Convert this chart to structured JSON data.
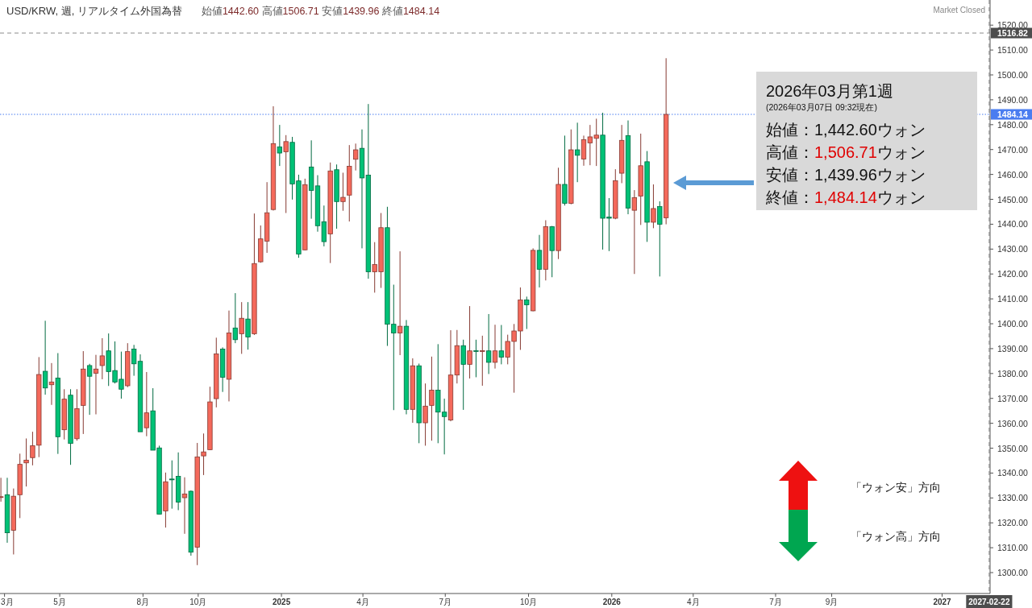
{
  "chart_data": {
    "type": "candlestick",
    "title": "USD/KRW, 週, リアルタイム外国為替",
    "subtitle": "始値1442.60 高値1506.71 安値1439.96 終値1484.14",
    "annotations": [
      "Market Closed",
      "2026年03月第1週",
      "(2026年03月07日 09:32現在)",
      "始値：1,442.60ウォン",
      "高値：1,506.71ウォン",
      "安値：1,439.96ウォン",
      "終値：1,484.14ウォン",
      "「ウォン安」方向",
      "「ウォン高」方向"
    ],
    "x": [
      "2024-02-26",
      "2024-03-04",
      "2024-03-11",
      "2024-03-18",
      "2024-03-25",
      "2024-04-01",
      "2024-04-08",
      "2024-04-15",
      "2024-04-22",
      "2024-04-29",
      "2024-05-06",
      "2024-05-13",
      "2024-05-20",
      "2024-05-27",
      "2024-06-03",
      "2024-06-10",
      "2024-06-17",
      "2024-06-24",
      "2024-07-01",
      "2024-07-08",
      "2024-07-15",
      "2024-07-22",
      "2024-07-29",
      "2024-08-05",
      "2024-08-12",
      "2024-08-19",
      "2024-08-26",
      "2024-09-02",
      "2024-09-09",
      "2024-09-16",
      "2024-09-23",
      "2024-09-30",
      "2024-10-07",
      "2024-10-14",
      "2024-10-21",
      "2024-10-28",
      "2024-11-04",
      "2024-11-11",
      "2024-11-18",
      "2024-11-25",
      "2024-12-02",
      "2024-12-09",
      "2024-12-16",
      "2024-12-23",
      "2024-12-30",
      "2025-01-06",
      "2025-01-13",
      "2025-01-20",
      "2025-01-27",
      "2025-02-03",
      "2025-02-10",
      "2025-02-17",
      "2025-02-24",
      "2025-03-03",
      "2025-03-10",
      "2025-03-17",
      "2025-03-24",
      "2025-03-31",
      "2025-04-07",
      "2025-04-14",
      "2025-04-21",
      "2025-04-28",
      "2025-05-05",
      "2025-05-12",
      "2025-05-19",
      "2025-05-26",
      "2025-06-02",
      "2025-06-09",
      "2025-06-16",
      "2025-06-23",
      "2025-06-30",
      "2025-07-07",
      "2025-07-14",
      "2025-07-21",
      "2025-07-28",
      "2025-08-04",
      "2025-08-11",
      "2025-08-18",
      "2025-08-25",
      "2025-09-01",
      "2025-09-08",
      "2025-09-15",
      "2025-09-22",
      "2025-09-29",
      "2025-10-06",
      "2025-10-13",
      "2025-10-20",
      "2025-10-27",
      "2025-11-03",
      "2025-11-10",
      "2025-11-17",
      "2025-11-24",
      "2025-12-01",
      "2025-12-08",
      "2025-12-15",
      "2025-12-22",
      "2025-12-29",
      "2026-01-05",
      "2026-01-12",
      "2026-01-19",
      "2026-01-26",
      "2026-02-02",
      "2026-02-09",
      "2026-02-16",
      "2026-02-23",
      "2026-03-02"
    ],
    "ohlc": [
      [
        1330.2,
        1338.1,
        1328.5,
        1330.5
      ],
      [
        1331.3,
        1338.1,
        1312.0,
        1316.0
      ],
      [
        1317.0,
        1333.8,
        1307.3,
        1330.7
      ],
      [
        1331.3,
        1347.8,
        1321.9,
        1343.5
      ],
      [
        1344.1,
        1353.9,
        1334.6,
        1345.2
      ],
      [
        1346.2,
        1356.6,
        1343.1,
        1351.0
      ],
      [
        1351.2,
        1386.6,
        1346.4,
        1379.6
      ],
      [
        1380.9,
        1401.2,
        1371.5,
        1374.2
      ],
      [
        1375.5,
        1384.2,
        1367.4,
        1376.6
      ],
      [
        1378.2,
        1388.2,
        1347.7,
        1354.6
      ],
      [
        1357.4,
        1373.7,
        1353.5,
        1369.7
      ],
      [
        1371.3,
        1373.7,
        1343.3,
        1351.9
      ],
      [
        1353.8,
        1373.7,
        1353.0,
        1365.9
      ],
      [
        1367.2,
        1389.0,
        1355.7,
        1381.8
      ],
      [
        1383.2,
        1383.9,
        1363.4,
        1378.9
      ],
      [
        1380.1,
        1387.5,
        1363.6,
        1381.8
      ],
      [
        1383.2,
        1394.2,
        1377.7,
        1387.1
      ],
      [
        1389.1,
        1396.1,
        1375.0,
        1380.8
      ],
      [
        1381.2,
        1392.9,
        1376.0,
        1376.6
      ],
      [
        1377.7,
        1388.8,
        1369.9,
        1373.7
      ],
      [
        1375.1,
        1392.2,
        1374.5,
        1388.8
      ],
      [
        1389.8,
        1391.5,
        1379.1,
        1383.9
      ],
      [
        1384.9,
        1387.7,
        1356.6,
        1356.6
      ],
      [
        1358.2,
        1380.6,
        1354.8,
        1364.2
      ],
      [
        1365.0,
        1374.1,
        1349.2,
        1349.2
      ],
      [
        1350.1,
        1351.0,
        1323.5,
        1323.5
      ],
      [
        1324.8,
        1340.2,
        1318.1,
        1336.5
      ],
      [
        1337.6,
        1345.1,
        1325.7,
        1337.5
      ],
      [
        1338.7,
        1348.3,
        1325.1,
        1328.3
      ],
      [
        1330.1,
        1338.3,
        1315.6,
        1331.6
      ],
      [
        1332.7,
        1333.0,
        1306.8,
        1308.2
      ],
      [
        1310.2,
        1352.1,
        1303.0,
        1346.5
      ],
      [
        1346.9,
        1355.9,
        1339.2,
        1348.5
      ],
      [
        1349.4,
        1374.7,
        1349.2,
        1368.6
      ],
      [
        1369.9,
        1394.4,
        1366.4,
        1387.9
      ],
      [
        1389.8,
        1390.5,
        1372.6,
        1378.5
      ],
      [
        1377.7,
        1405.3,
        1368.8,
        1396.3
      ],
      [
        1398.3,
        1412.3,
        1392.2,
        1393.6
      ],
      [
        1396.0,
        1408.7,
        1387.9,
        1402.2
      ],
      [
        1401.9,
        1408.7,
        1389.6,
        1394.7
      ],
      [
        1396.0,
        1444.3,
        1395.5,
        1424.2
      ],
      [
        1424.9,
        1439.5,
        1424.5,
        1434.1
      ],
      [
        1433.2,
        1456.9,
        1428.5,
        1444.6
      ],
      [
        1445.9,
        1487.4,
        1445.5,
        1472.4
      ],
      [
        1471.1,
        1479.9,
        1463.4,
        1468.6
      ],
      [
        1469.1,
        1475.8,
        1444.5,
        1473.2
      ],
      [
        1472.9,
        1475.1,
        1449.9,
        1456.2
      ],
      [
        1457.4,
        1459.9,
        1426.5,
        1428.0
      ],
      [
        1429.7,
        1458.3,
        1429.5,
        1455.9
      ],
      [
        1463.0,
        1473.7,
        1442.2,
        1453.6
      ],
      [
        1455.4,
        1459.7,
        1437.0,
        1439.4
      ],
      [
        1441.0,
        1447.5,
        1431.1,
        1433.0
      ],
      [
        1436.1,
        1464.8,
        1424.4,
        1461.4
      ],
      [
        1461.9,
        1464.0,
        1438.2,
        1449.1
      ],
      [
        1449.1,
        1460.7,
        1445.4,
        1450.8
      ],
      [
        1451.7,
        1471.8,
        1441.1,
        1463.3
      ],
      [
        1466.1,
        1472.4,
        1461.6,
        1469.9
      ],
      [
        1470.5,
        1478.1,
        1430.3,
        1458.6
      ],
      [
        1459.7,
        1488.3,
        1418.1,
        1420.9
      ],
      [
        1420.9,
        1432.8,
        1412.5,
        1423.8
      ],
      [
        1420.9,
        1444.5,
        1414.4,
        1438.6
      ],
      [
        1438.6,
        1447.0,
        1391.1,
        1399.8
      ],
      [
        1399.8,
        1415.7,
        1365.3,
        1396.3
      ],
      [
        1396.3,
        1429.1,
        1387.4,
        1399.0
      ],
      [
        1399.0,
        1401.5,
        1363.6,
        1365.6
      ],
      [
        1365.6,
        1386.1,
        1360.2,
        1383.1
      ],
      [
        1383.1,
        1384.0,
        1352.0,
        1360.2
      ],
      [
        1360.2,
        1376.0,
        1351.0,
        1366.9
      ],
      [
        1367.2,
        1386.8,
        1353.0,
        1373.3
      ],
      [
        1373.3,
        1391.8,
        1352.0,
        1364.5
      ],
      [
        1364.5,
        1369.9,
        1347.5,
        1362.7
      ],
      [
        1361.3,
        1397.4,
        1360.8,
        1379.4
      ],
      [
        1379.4,
        1397.5,
        1376.0,
        1391.2
      ],
      [
        1391.2,
        1393.6,
        1365.4,
        1383.7
      ],
      [
        1383.7,
        1407.1,
        1378.0,
        1389.1
      ],
      [
        1389.2,
        1393.6,
        1378.5,
        1389.1
      ],
      [
        1389.1,
        1395.2,
        1375.1,
        1389.2
      ],
      [
        1389.1,
        1403.9,
        1379.8,
        1384.5
      ],
      [
        1384.5,
        1399.6,
        1382.0,
        1389.1
      ],
      [
        1389.1,
        1399.5,
        1383.7,
        1386.6
      ],
      [
        1386.6,
        1395.6,
        1383.7,
        1392.9
      ],
      [
        1392.9,
        1399.9,
        1372.3,
        1397.1
      ],
      [
        1397.1,
        1414.6,
        1389.5,
        1409.6
      ],
      [
        1409.6,
        1410.9,
        1397.9,
        1407.6
      ],
      [
        1405.2,
        1430.3,
        1405.0,
        1429.5
      ],
      [
        1429.5,
        1435.7,
        1414.6,
        1421.9
      ],
      [
        1421.9,
        1441.6,
        1417.4,
        1439.0
      ],
      [
        1439.0,
        1439.3,
        1418.7,
        1429.4
      ],
      [
        1429.4,
        1462.7,
        1426.0,
        1456.0
      ],
      [
        1456.0,
        1475.6,
        1447.5,
        1448.4
      ],
      [
        1448.4,
        1478.1,
        1448.0,
        1469.9
      ],
      [
        1469.9,
        1480.8,
        1456.9,
        1467.7
      ],
      [
        1466.2,
        1475.6,
        1463.5,
        1474.0
      ],
      [
        1472.7,
        1479.9,
        1463.7,
        1475.1
      ],
      [
        1474.5,
        1482.4,
        1463.4,
        1475.8
      ],
      [
        1475.8,
        1484.8,
        1429.8,
        1442.4
      ],
      [
        1442.9,
        1450.5,
        1429.2,
        1442.4
      ],
      [
        1442.4,
        1462.1,
        1442.0,
        1457.5
      ],
      [
        1460.5,
        1479.9,
        1456.5,
        1473.7
      ],
      [
        1475.6,
        1481.7,
        1444.0,
        1446.5
      ],
      [
        1445.6,
        1453.7,
        1420.0,
        1450.7
      ],
      [
        1451.3,
        1476.4,
        1439.7,
        1463.5
      ],
      [
        1465.1,
        1469.4,
        1432.9,
        1440.8
      ],
      [
        1440.8,
        1456.0,
        1438.4,
        1446.3
      ],
      [
        1447.1,
        1449.2,
        1419.0,
        1440.0
      ],
      [
        1442.6,
        1506.71,
        1439.96,
        1484.14
      ]
    ],
    "colors": [
      "#f4695b",
      "#00c176",
      "#f4695b",
      "#f4695b",
      "#f4695b",
      "#f4695b",
      "#f4695b",
      "#00c176",
      "#f4695b",
      "#00c176",
      "#f4695b",
      "#00c176",
      "#f4695b",
      "#f4695b",
      "#00c176",
      "#f4695b",
      "#f4695b",
      "#00c176",
      "#00c176",
      "#00c176",
      "#f4695b",
      "#00c176",
      "#00c176",
      "#f4695b",
      "#00c176",
      "#00c176",
      "#f4695b",
      "#00c176",
      "#00c176",
      "#f4695b",
      "#00c176",
      "#f4695b",
      "#f4695b",
      "#f4695b",
      "#f4695b",
      "#00c176",
      "#f4695b",
      "#00c176",
      "#f4695b",
      "#00c176",
      "#f4695b",
      "#f4695b",
      "#f4695b",
      "#f4695b",
      "#00c176",
      "#f4695b",
      "#00c176",
      "#00c176",
      "#f4695b",
      "#00c176",
      "#00c176",
      "#00c176",
      "#f4695b",
      "#00c176",
      "#f4695b",
      "#f4695b",
      "#f4695b",
      "#00c176",
      "#00c176",
      "#f4695b",
      "#f4695b",
      "#00c176",
      "#00c176",
      "#f4695b",
      "#00c176",
      "#f4695b",
      "#00c176",
      "#f4695b",
      "#f4695b",
      "#00c176",
      "#00c176",
      "#f4695b",
      "#f4695b",
      "#00c176",
      "#f4695b",
      "#00c176",
      "#f4695b",
      "#00c176",
      "#f4695b",
      "#00c176",
      "#f4695b",
      "#f4695b",
      "#f4695b",
      "#00c176",
      "#f4695b",
      "#00c176",
      "#f4695b",
      "#00c176",
      "#f4695b",
      "#00c176",
      "#f4695b",
      "#00c176",
      "#f4695b",
      "#f4695b",
      "#f4695b",
      "#00c176",
      "#00c176",
      "#f4695b",
      "#f4695b",
      "#00c176",
      "#f4695b",
      "#f4695b",
      "#00c176",
      "#f4695b",
      "#00c176",
      "#f4695b"
    ],
    "xlim": [
      "2024-02-25",
      "2027-02-23"
    ],
    "xticks": [
      {
        "value": "2024-03-01",
        "label": "3月"
      },
      {
        "value": "2024-05-01",
        "label": "5月"
      },
      {
        "value": "2024-08-01",
        "label": "8月"
      },
      {
        "value": "2024-10-01",
        "label": "10月"
      },
      {
        "value": "2025-01-01",
        "label": "2025"
      },
      {
        "value": "2025-04-01",
        "label": "4月"
      },
      {
        "value": "2025-07-01",
        "label": "7月"
      },
      {
        "value": "2025-10-01",
        "label": "10月"
      },
      {
        "value": "2026-01-01",
        "label": "2026"
      },
      {
        "value": "2026-04-01",
        "label": "4月"
      },
      {
        "value": "2026-07-01",
        "label": "7月"
      },
      {
        "value": "2026-09-01",
        "label": "9月"
      },
      {
        "value": "2027-01-01",
        "label": "2027"
      }
    ],
    "ylim": [
      1291.6,
      1530.1
    ],
    "yticks": [
      {
        "value": 1300,
        "label": "1300.00"
      },
      {
        "value": 1310,
        "label": "1310.00"
      },
      {
        "value": 1320,
        "label": "1320.00"
      },
      {
        "value": 1330,
        "label": "1330.00"
      },
      {
        "value": 1340,
        "label": "1340.00"
      },
      {
        "value": 1350,
        "label": "1350.00"
      },
      {
        "value": 1360,
        "label": "1360.00"
      },
      {
        "value": 1370,
        "label": "1370.00"
      },
      {
        "value": 1380,
        "label": "1380.00"
      },
      {
        "value": 1390,
        "label": "1390.00"
      },
      {
        "value": 1400,
        "label": "1400.00"
      },
      {
        "value": 1410,
        "label": "1410.00"
      },
      {
        "value": 1420,
        "label": "1420.00"
      },
      {
        "value": 1430,
        "label": "1430.00"
      },
      {
        "value": 1440,
        "label": "1440.00"
      },
      {
        "value": 1450,
        "label": "1450.00"
      },
      {
        "value": 1460,
        "label": "1460.00"
      },
      {
        "value": 1470,
        "label": "1470.00"
      },
      {
        "value": 1480,
        "label": "1480.00"
      },
      {
        "value": 1490,
        "label": "1490.00"
      },
      {
        "value": 1500,
        "label": "1500.00"
      },
      {
        "value": 1510,
        "label": "1510.00"
      },
      {
        "value": 1520,
        "label": "1520.00"
      }
    ],
    "ref_lines": [
      {
        "axis": "y",
        "value": 1516.82,
        "label": "1516.82",
        "color": "#8c8c8c",
        "line_style": "dashed"
      },
      {
        "axis": "y",
        "value": 1484.14,
        "label": "1484.14",
        "color": "#4a7df0",
        "line_style": "dotted"
      },
      {
        "axis": "x",
        "value": "2027-02-22",
        "label": "2027-02-22",
        "color": "#8c8c8c",
        "line_style": "dashed"
      }
    ]
  }
}
